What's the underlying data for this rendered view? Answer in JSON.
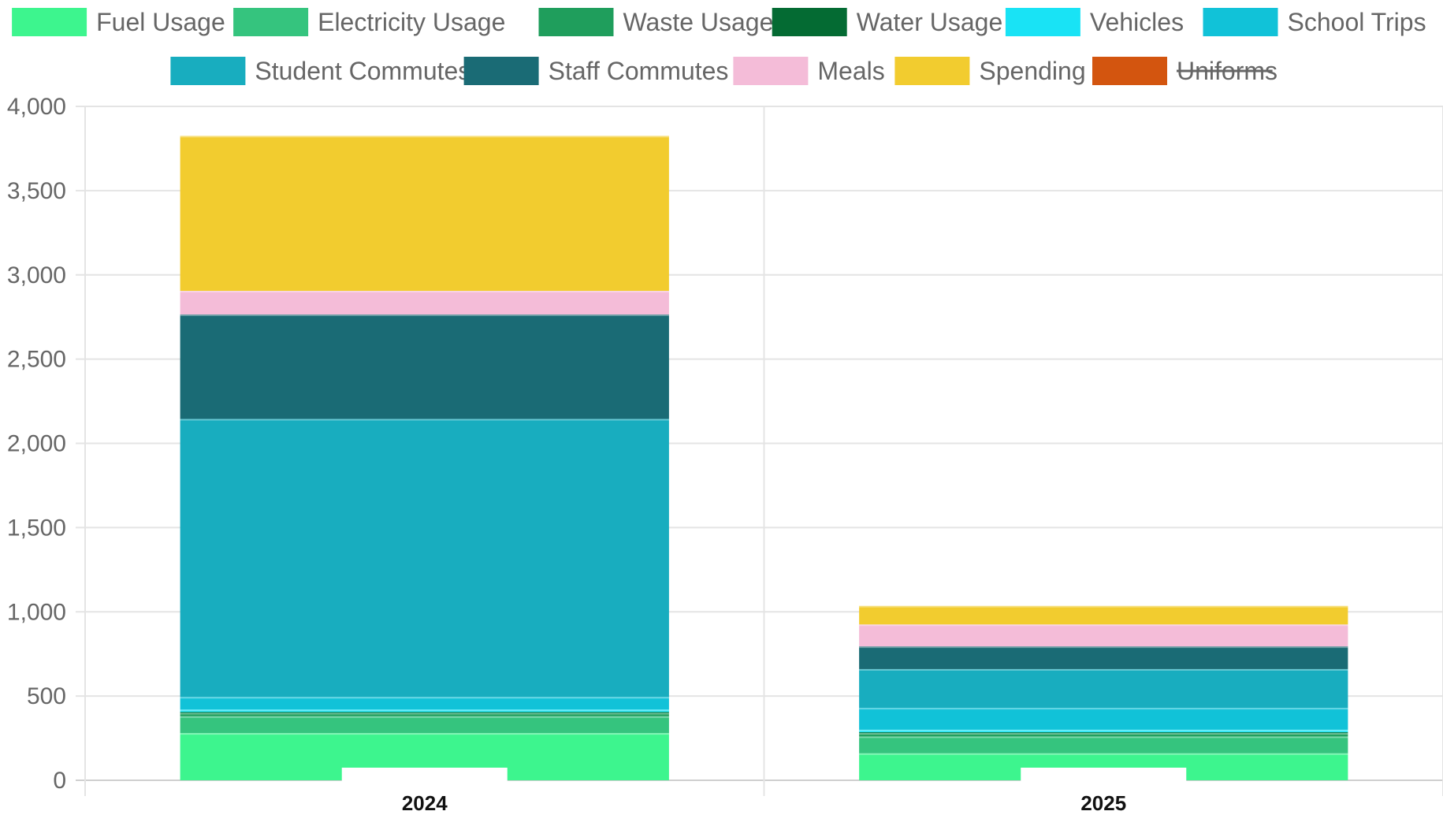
{
  "chart_data": {
    "type": "bar",
    "stacked": true,
    "categories": [
      "2024",
      "2025"
    ],
    "ylim": [
      0,
      4000
    ],
    "yticks": [
      0,
      500,
      1000,
      1500,
      2000,
      2500,
      3000,
      3500,
      4000
    ],
    "ytick_labels": [
      "0",
      "500",
      "1,000",
      "1,500",
      "2,000",
      "2,500",
      "3,000",
      "3,500",
      "4,000"
    ],
    "grid": true,
    "legend_position": "top",
    "series": [
      {
        "name": "Fuel Usage",
        "color": "#3df58e",
        "values": [
          280,
          160
        ],
        "hidden": false
      },
      {
        "name": "Electricity Usage",
        "color": "#35c47e",
        "values": [
          100,
          100
        ],
        "hidden": false
      },
      {
        "name": "Waste Usage",
        "color": "#1f9e5c",
        "values": [
          20,
          20
        ],
        "hidden": false
      },
      {
        "name": "Water Usage",
        "color": "#046b33",
        "values": [
          5,
          5
        ],
        "hidden": false
      },
      {
        "name": "Vehicles",
        "color": "#19e3f5",
        "values": [
          15,
          15
        ],
        "hidden": false
      },
      {
        "name": "School Trips",
        "color": "#11c2d8",
        "values": [
          75,
          130
        ],
        "hidden": false
      },
      {
        "name": "Student Commutes",
        "color": "#18adbf",
        "values": [
          1650,
          230
        ],
        "hidden": false
      },
      {
        "name": "Staff Commutes",
        "color": "#1a6b75",
        "values": [
          620,
          135
        ],
        "hidden": false
      },
      {
        "name": "Meals",
        "color": "#f4bcd8",
        "values": [
          140,
          130
        ],
        "hidden": false
      },
      {
        "name": "Spending",
        "color": "#f2cc2f",
        "values": [
          920,
          110
        ],
        "hidden": false
      },
      {
        "name": "Uniforms",
        "color": "#d3550f",
        "values": [
          0,
          0
        ],
        "hidden": true
      }
    ]
  }
}
